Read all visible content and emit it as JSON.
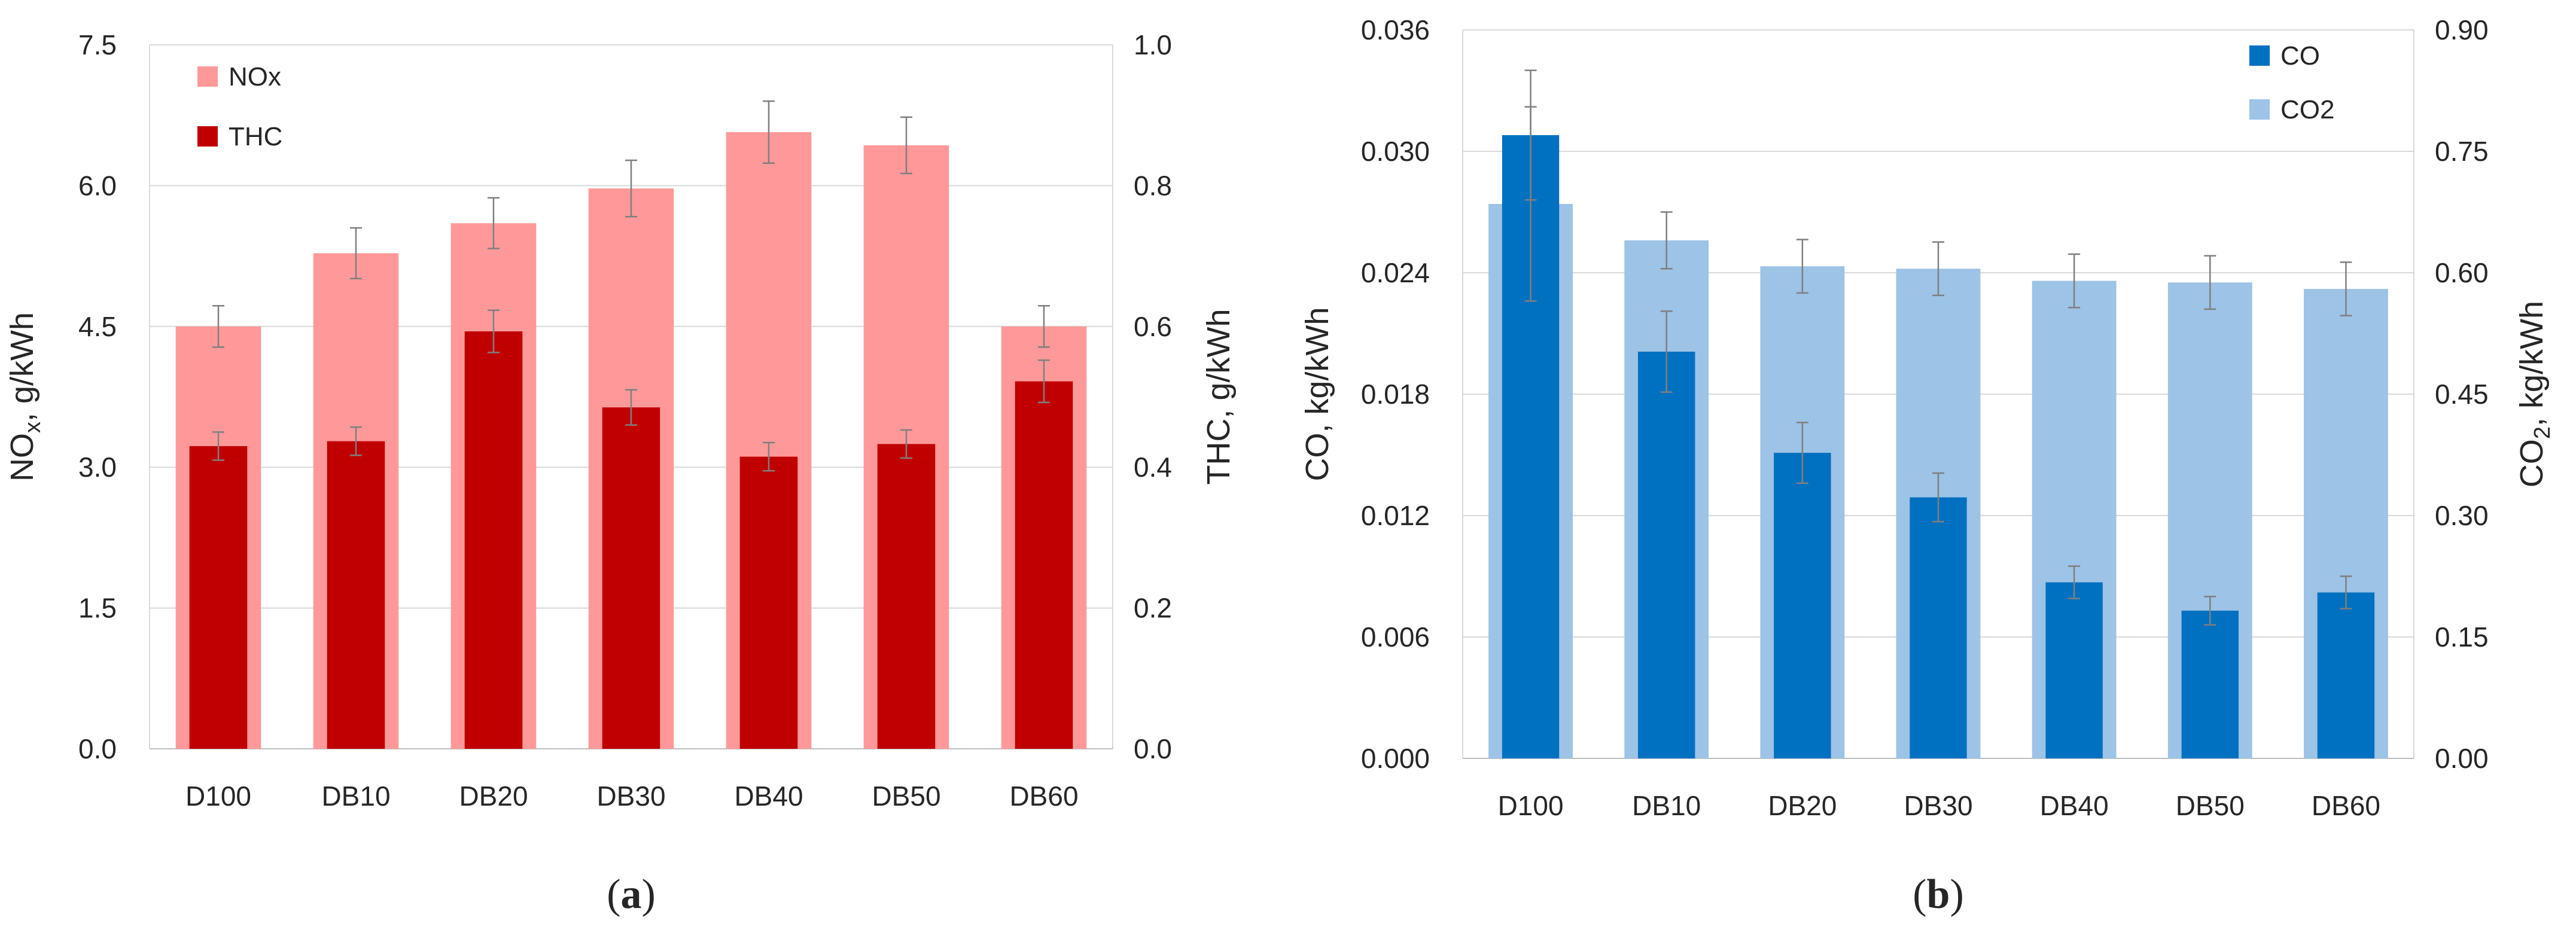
{
  "chart_data": [
    {
      "panel_label": "a",
      "type": "bar",
      "categories": [
        "D100",
        "DB10",
        "DB20",
        "DB30",
        "DB40",
        "DB50",
        "DB60"
      ],
      "left_axis": {
        "label": "NOx, g/kWh",
        "label_main": "NO",
        "label_sub": "x",
        "label_rest": ", g/kWh",
        "range": [
          0,
          7.5
        ],
        "ticks": [
          "0.0",
          "1.5",
          "3.0",
          "4.5",
          "6.0",
          "7.5"
        ]
      },
      "right_axis": {
        "label": "THC, g/kWh",
        "range": [
          0,
          1.0
        ],
        "ticks": [
          "0.0",
          "0.2",
          "0.4",
          "0.6",
          "0.8",
          "1.0"
        ]
      },
      "series": [
        {
          "name": "NOx",
          "axis": "left",
          "color": "#FF9999",
          "values": [
            4.5,
            5.28,
            5.6,
            5.97,
            6.57,
            6.43,
            4.5
          ],
          "errors": [
            0.22,
            0.27,
            0.27,
            0.3,
            0.33,
            0.3,
            0.22
          ]
        },
        {
          "name": "THC",
          "axis": "right",
          "color": "#C00000",
          "values": [
            0.43,
            0.437,
            0.593,
            0.485,
            0.415,
            0.433,
            0.522
          ],
          "errors": [
            0.02,
            0.02,
            0.03,
            0.025,
            0.02,
            0.02,
            0.03
          ]
        }
      ],
      "grid": true,
      "legend": "top-left"
    },
    {
      "panel_label": "b",
      "type": "bar",
      "categories": [
        "D100",
        "DB10",
        "DB20",
        "DB30",
        "DB40",
        "DB50",
        "DB60"
      ],
      "left_axis": {
        "label": "CO, kg/kWh",
        "range": [
          0,
          0.036
        ],
        "ticks": [
          "0.000",
          "0.006",
          "0.012",
          "0.018",
          "0.024",
          "0.030",
          "0.036"
        ]
      },
      "right_axis": {
        "label": "CO2, kg/kWh",
        "label_main": "CO",
        "label_sub": "2",
        "label_rest": ", kg/kWh",
        "range": [
          0,
          0.9
        ],
        "ticks": [
          "0.00",
          "0.15",
          "0.30",
          "0.45",
          "0.60",
          "0.75",
          "0.90"
        ]
      },
      "series": [
        {
          "name": "CO2",
          "axis": "right",
          "color": "#9DC3E6",
          "values": [
            0.685,
            0.64,
            0.608,
            0.605,
            0.59,
            0.588,
            0.58
          ],
          "errors": [
            0.12,
            0.035,
            0.033,
            0.033,
            0.033,
            0.033,
            0.033
          ]
        },
        {
          "name": "CO",
          "axis": "left",
          "color": "#0070C0",
          "values": [
            0.0308,
            0.0201,
            0.0151,
            0.0129,
            0.0087,
            0.0073,
            0.0082
          ],
          "errors": [
            0.0032,
            0.002,
            0.0015,
            0.0012,
            0.0008,
            0.0007,
            0.0008
          ]
        }
      ],
      "legend_order": [
        "CO",
        "CO2"
      ],
      "grid": true,
      "legend": "top-right"
    }
  ]
}
